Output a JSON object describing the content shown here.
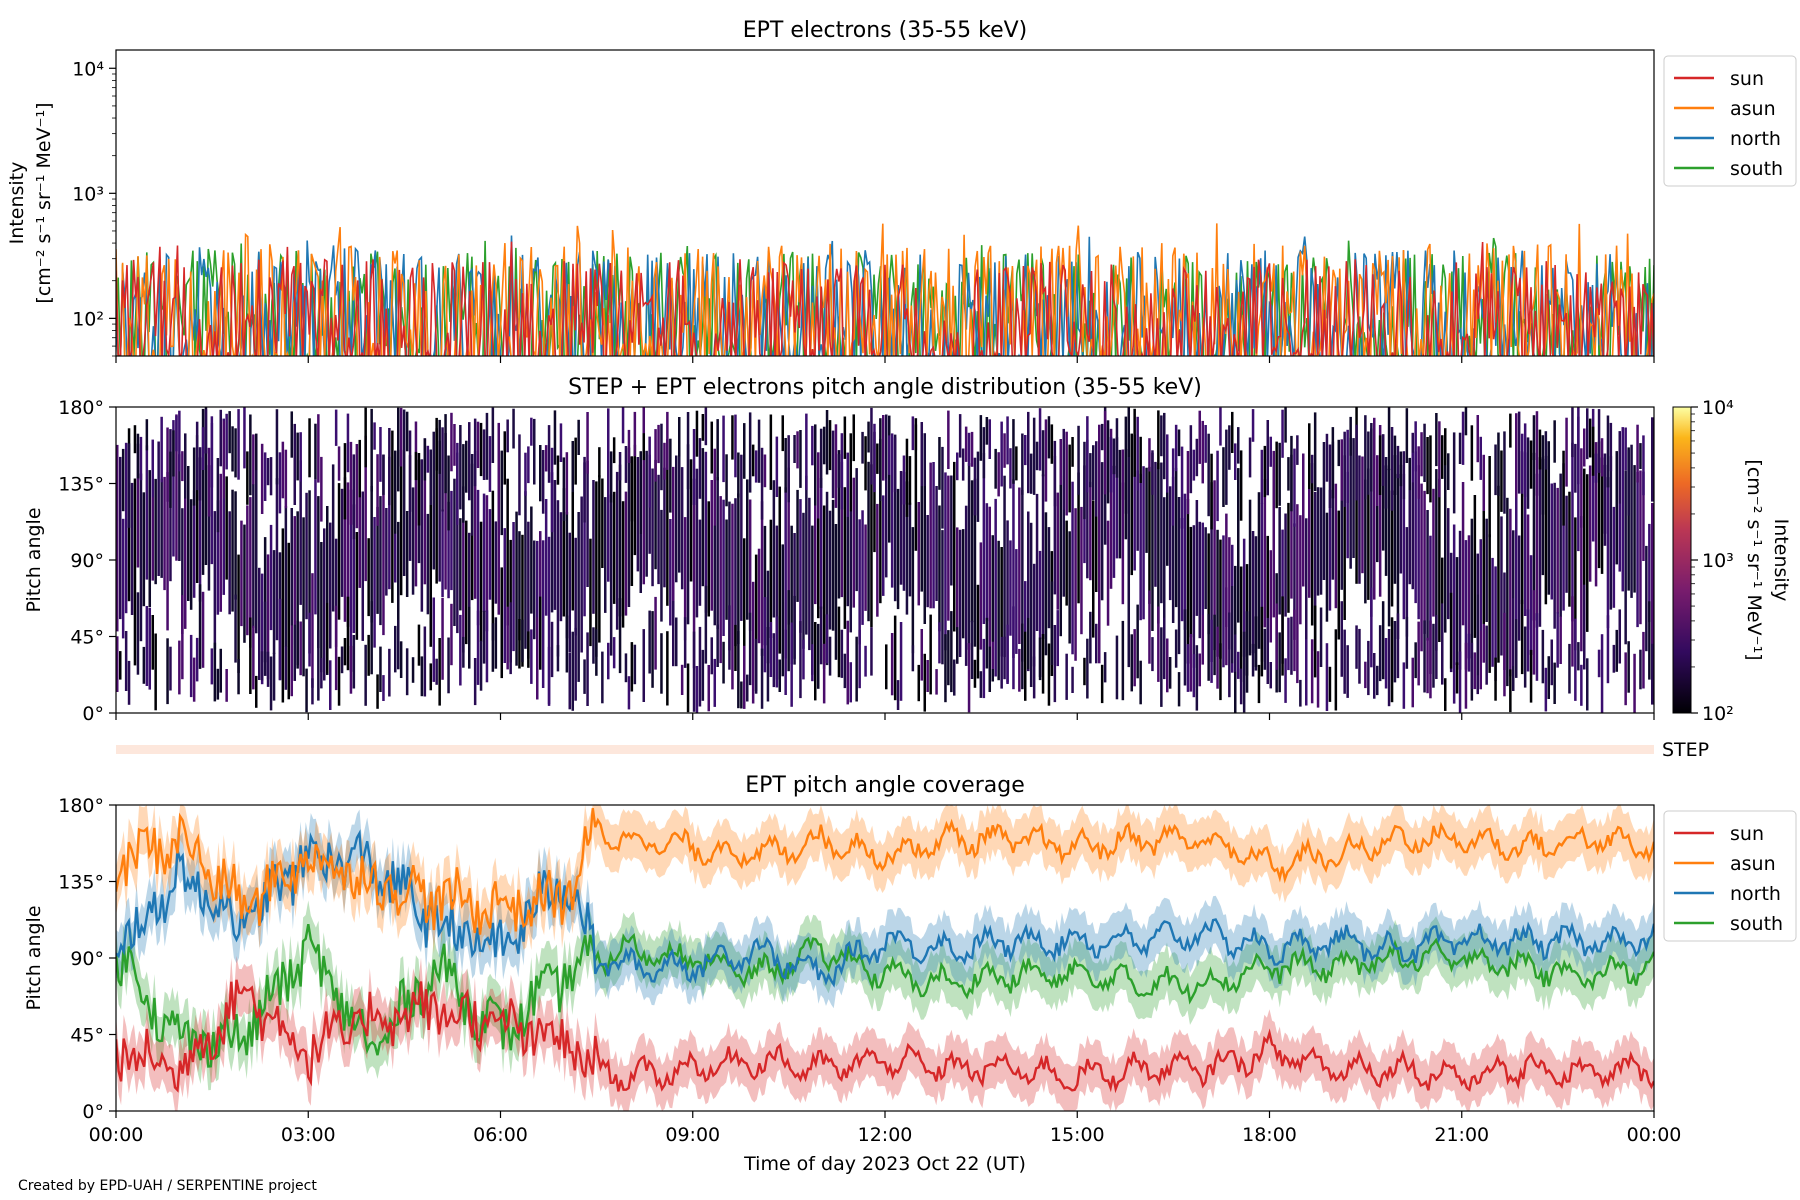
{
  "credit": "Created by EPD-UAH / SERPENTINE project",
  "colors": {
    "sun": "#d62728",
    "asun": "#ff7f0e",
    "north": "#1f77b4",
    "south": "#2ca02c"
  },
  "chart_data": [
    {
      "type": "line",
      "title": "EPT electrons (35-55 keV)",
      "ylabel": "Intensity",
      "ylabel_units": "[cm⁻² s⁻¹ sr⁻¹ MeV⁻¹]",
      "yscale": "log",
      "ylim": [
        50,
        14000
      ],
      "yticks": [
        {
          "value": 100,
          "label": "10²"
        },
        {
          "value": 1000,
          "label": "10³"
        },
        {
          "value": 10000,
          "label": "10⁴"
        }
      ],
      "xlim": [
        "2023-10-22 00:00",
        "2023-10-23 00:00"
      ],
      "legend_position": "outside-right-top",
      "series": [
        {
          "name": "sun",
          "typical_range": [
            50,
            300
          ],
          "peak": 480
        },
        {
          "name": "asun",
          "typical_range": [
            50,
            400
          ],
          "peak": 600
        },
        {
          "name": "north",
          "typical_range": [
            50,
            350
          ],
          "peak": 500
        },
        {
          "name": "south",
          "typical_range": [
            50,
            350
          ],
          "peak": 450
        }
      ]
    },
    {
      "type": "heatmap",
      "title": "STEP + EPT electrons pitch angle distribution (35-55 keV)",
      "ylabel": "Pitch angle",
      "ylim": [
        0,
        180
      ],
      "yticks": [
        "0°",
        "45°",
        "90°",
        "135°",
        "180°"
      ],
      "colorbar": {
        "label": "Intensity",
        "units": "[cm⁻² s⁻¹ sr⁻¹ MeV⁻¹]",
        "scale": "log",
        "range": [
          100,
          10000
        ],
        "ticks": [
          "10²",
          "10³",
          "10⁴"
        ],
        "colormap": "inferno"
      }
    },
    {
      "type": "bar",
      "label": "STEP",
      "color": "#fde7dc"
    },
    {
      "type": "area",
      "title": "EPT pitch angle coverage",
      "ylabel": "Pitch angle",
      "xlabel": "Time of day 2023 Oct 22 (UT)",
      "ylim": [
        0,
        180
      ],
      "yticks": [
        "0°",
        "45°",
        "90°",
        "135°",
        "180°"
      ],
      "xticks": [
        "00:00",
        "03:00",
        "06:00",
        "09:00",
        "12:00",
        "15:00",
        "18:00",
        "21:00",
        "00:00"
      ],
      "legend_position": "outside-right-top",
      "series": [
        {
          "name": "sun",
          "x_hours": [
            0,
            1,
            2,
            3,
            4,
            5,
            6,
            7,
            7.5,
            8,
            9,
            10,
            11,
            12,
            13,
            14,
            15,
            16,
            17,
            18,
            19,
            20,
            21,
            22,
            23,
            24
          ],
          "y": [
            35,
            25,
            70,
            35,
            55,
            60,
            50,
            40,
            25,
            20,
            25,
            30,
            25,
            30,
            25,
            25,
            20,
            25,
            25,
            35,
            25,
            25,
            20,
            25,
            22,
            25
          ]
        },
        {
          "name": "asun",
          "x_hours": [
            0,
            1,
            2,
            3,
            4,
            5,
            6,
            7,
            7.5,
            8,
            9,
            10,
            11,
            12,
            13,
            14,
            15,
            16,
            17,
            18,
            19,
            20,
            21,
            22,
            23,
            24
          ],
          "y": [
            145,
            160,
            120,
            150,
            135,
            125,
            120,
            125,
            165,
            160,
            155,
            150,
            160,
            150,
            160,
            160,
            155,
            160,
            160,
            145,
            150,
            160,
            160,
            155,
            160,
            155
          ]
        },
        {
          "name": "north",
          "x_hours": [
            0,
            1,
            2,
            3,
            4,
            5,
            6,
            7,
            7.5,
            8,
            9,
            10,
            11,
            12,
            13,
            14,
            15,
            16,
            17,
            18,
            19,
            20,
            21,
            22,
            23,
            24
          ],
          "y": [
            90,
            140,
            110,
            150,
            145,
            110,
            95,
            140,
            90,
            85,
            85,
            95,
            80,
            100,
            95,
            100,
            100,
            100,
            105,
            95,
            100,
            95,
            100,
            100,
            100,
            100
          ]
        },
        {
          "name": "south",
          "x_hours": [
            0,
            1,
            2,
            3,
            4,
            5,
            6,
            7,
            7.5,
            8,
            9,
            10,
            11,
            12,
            13,
            14,
            15,
            16,
            17,
            18,
            19,
            20,
            21,
            22,
            23,
            24
          ],
          "y": [
            95,
            40,
            45,
            95,
            35,
            85,
            45,
            80,
            90,
            95,
            90,
            80,
            95,
            80,
            75,
            80,
            80,
            75,
            75,
            85,
            85,
            90,
            90,
            85,
            80,
            85
          ]
        }
      ]
    }
  ]
}
